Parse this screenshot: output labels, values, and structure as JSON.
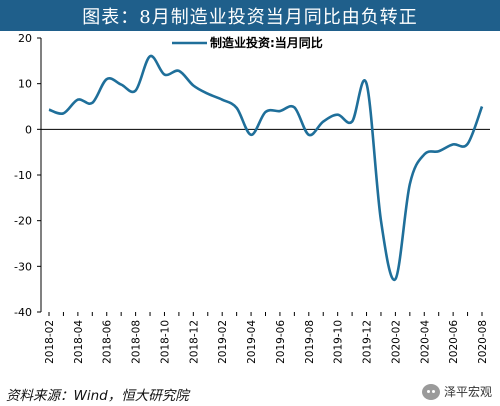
{
  "title": "图表：8月制造业投资当月同比由负转正",
  "source": "资料来源：Wind，恒大研究院",
  "watermark": "泽平宏观",
  "colors": {
    "line": "#1f6f9a",
    "title_bg": "#1f5f8b",
    "axis": "#000000"
  },
  "chart_data": {
    "type": "line",
    "title": "图表：8月制造业投资当月同比由负转正",
    "xlabel": "",
    "ylabel": "",
    "ylim": [
      -40,
      20
    ],
    "yticks": [
      20,
      10,
      0,
      -10,
      -20,
      -30,
      -40
    ],
    "x": [
      "2018-02",
      "2018-03",
      "2018-04",
      "2018-05",
      "2018-06",
      "2018-07",
      "2018-08",
      "2018-09",
      "2018-10",
      "2018-11",
      "2018-12",
      "2019-01",
      "2019-02",
      "2019-03",
      "2019-04",
      "2019-05",
      "2019-06",
      "2019-07",
      "2019-08",
      "2019-09",
      "2019-10",
      "2019-11",
      "2019-12",
      "2020-01",
      "2020-02",
      "2020-03",
      "2020-04",
      "2020-05",
      "2020-06",
      "2020-07",
      "2020-08"
    ],
    "xtick_labels": [
      "2018-02",
      "2018-04",
      "2018-06",
      "2018-08",
      "2018-10",
      "2018-12",
      "2019-02",
      "2019-04",
      "2019-06",
      "2019-08",
      "2019-10",
      "2019-12",
      "2020-02",
      "2020-04",
      "2020-06",
      "2020-08"
    ],
    "legend_position": "top",
    "grid": false,
    "series": [
      {
        "name": "制造业投资:当月同比",
        "values": [
          4.3,
          3.5,
          6.5,
          5.8,
          11.0,
          9.8,
          8.5,
          16.0,
          12.0,
          12.8,
          9.6,
          7.8,
          6.5,
          4.7,
          -1.2,
          3.8,
          4.0,
          4.8,
          -1.2,
          1.7,
          3.2,
          1.7,
          10.0,
          -20.0,
          -32.8,
          -12.0,
          -5.5,
          -4.8,
          -3.3,
          -3.2,
          5.0
        ]
      }
    ]
  }
}
